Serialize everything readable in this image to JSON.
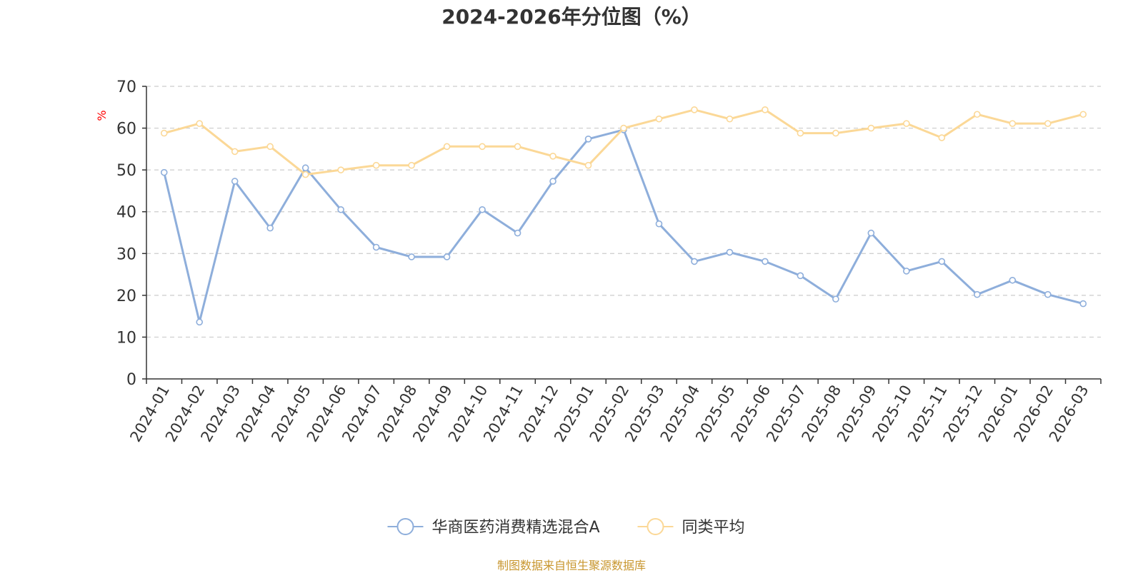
{
  "chart_data": {
    "type": "line",
    "title": "2024-2026年分位图（%）",
    "ylabel": "%",
    "xlabel": "",
    "ylim": [
      0,
      70
    ],
    "yticks": [
      0,
      10,
      20,
      30,
      40,
      50,
      60,
      70
    ],
    "grid": true,
    "legend_position": "bottom-center",
    "categories": [
      "2024-01",
      "2024-02",
      "2024-03",
      "2024-04",
      "2024-05",
      "2024-06",
      "2024-07",
      "2024-08",
      "2024-09",
      "2024-10",
      "2024-11",
      "2024-12",
      "2025-01",
      "2025-02",
      "2025-03",
      "2025-04",
      "2025-05",
      "2025-06",
      "2025-07",
      "2025-08",
      "2025-09",
      "2025-10",
      "2025-11",
      "2025-12",
      "2026-01",
      "2026-02",
      "2026-03"
    ],
    "series": [
      {
        "name": "华商医药消费精选混合A",
        "color": "#8eaedb",
        "values": [
          49.4,
          13.6,
          47.3,
          36.1,
          50.5,
          40.5,
          31.5,
          29.2,
          29.2,
          40.5,
          34.9,
          47.3,
          57.4,
          59.6,
          37.1,
          28.1,
          30.3,
          28.1,
          24.7,
          19.1,
          34.9,
          25.8,
          28.1,
          20.2,
          23.6,
          20.2,
          18.0
        ]
      },
      {
        "name": "同类平均",
        "color": "#fbd897",
        "values": [
          58.8,
          61.1,
          54.4,
          55.6,
          48.9,
          50.0,
          51.1,
          51.1,
          55.6,
          55.6,
          55.6,
          53.3,
          51.1,
          60.0,
          62.2,
          64.4,
          62.2,
          64.4,
          58.8,
          58.8,
          60.0,
          61.1,
          57.7,
          63.3,
          61.1,
          61.1,
          63.3
        ]
      }
    ]
  },
  "source_note": "制图数据来自恒生聚源数据库",
  "colors": {
    "axis": "#333333",
    "grid": "#cccccc",
    "ylabel": "#ff0000",
    "source": "#c8962e"
  }
}
